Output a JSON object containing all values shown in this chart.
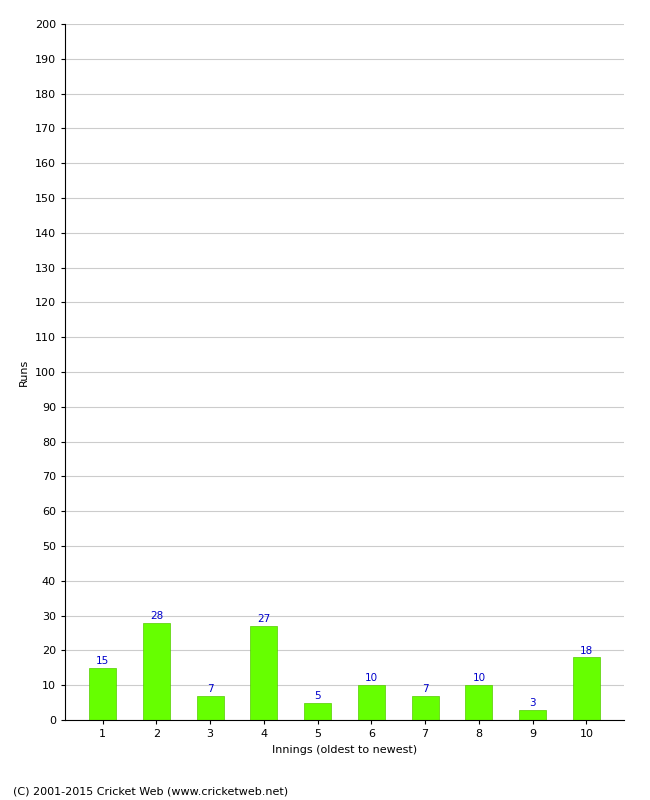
{
  "categories": [
    "1",
    "2",
    "3",
    "4",
    "5",
    "6",
    "7",
    "8",
    "9",
    "10"
  ],
  "values": [
    15,
    28,
    7,
    27,
    5,
    10,
    7,
    10,
    3,
    18
  ],
  "bar_color": "#66ff00",
  "bar_edge_color": "#55cc00",
  "ylabel": "Runs",
  "xlabel": "Innings (oldest to newest)",
  "ylim": [
    0,
    200
  ],
  "yticks": [
    0,
    10,
    20,
    30,
    40,
    50,
    60,
    70,
    80,
    90,
    100,
    110,
    120,
    130,
    140,
    150,
    160,
    170,
    180,
    190,
    200
  ],
  "label_color": "#0000cc",
  "label_fontsize": 7.5,
  "axis_label_fontsize": 8,
  "tick_fontsize": 8,
  "footer_text": "(C) 2001-2015 Cricket Web (www.cricketweb.net)",
  "footer_fontsize": 8,
  "background_color": "#ffffff",
  "grid_color": "#cccccc",
  "bar_width": 0.5
}
